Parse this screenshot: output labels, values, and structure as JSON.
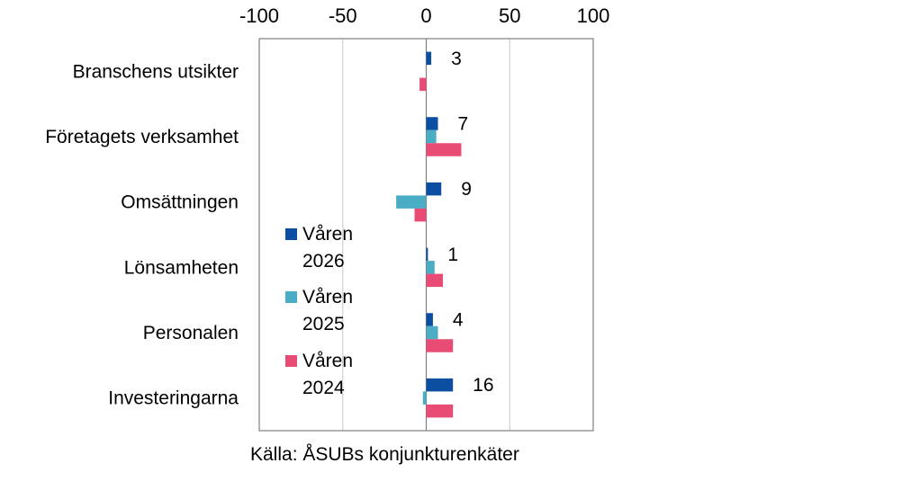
{
  "chart_data": {
    "type": "bar",
    "orientation": "horizontal",
    "categories": [
      "Branschens utsikter",
      "Företagets verksamhet",
      "Omsättningen",
      "Lönsamheten",
      "Personalen",
      "Investeringarna"
    ],
    "series": [
      {
        "name_lines": [
          "Våren",
          "2026"
        ],
        "color": "#0B4EA2",
        "values": [
          3,
          7,
          9,
          1,
          4,
          16
        ]
      },
      {
        "name_lines": [
          "Våren",
          "2025"
        ],
        "color": "#4BACC6",
        "values": [
          0,
          6,
          -18,
          5,
          7,
          -2
        ]
      },
      {
        "name_lines": [
          "Våren",
          "2024"
        ],
        "color": "#E84C74",
        "values": [
          -4,
          21,
          -7,
          10,
          16,
          16
        ]
      }
    ],
    "data_labels": {
      "series_index": 0,
      "values": [
        "3",
        "7",
        "9",
        "1",
        "4",
        "16"
      ]
    },
    "xlim": [
      -100,
      100
    ],
    "xticks": [
      -100,
      -50,
      0,
      50,
      100
    ],
    "xtick_labels": [
      "-100",
      "-50",
      "0",
      "50",
      "100"
    ],
    "x_axis_position": "top",
    "grid": true,
    "legend_position": "inside-left"
  },
  "source": "Källa: ÅSUBs konjunkturenkäter"
}
